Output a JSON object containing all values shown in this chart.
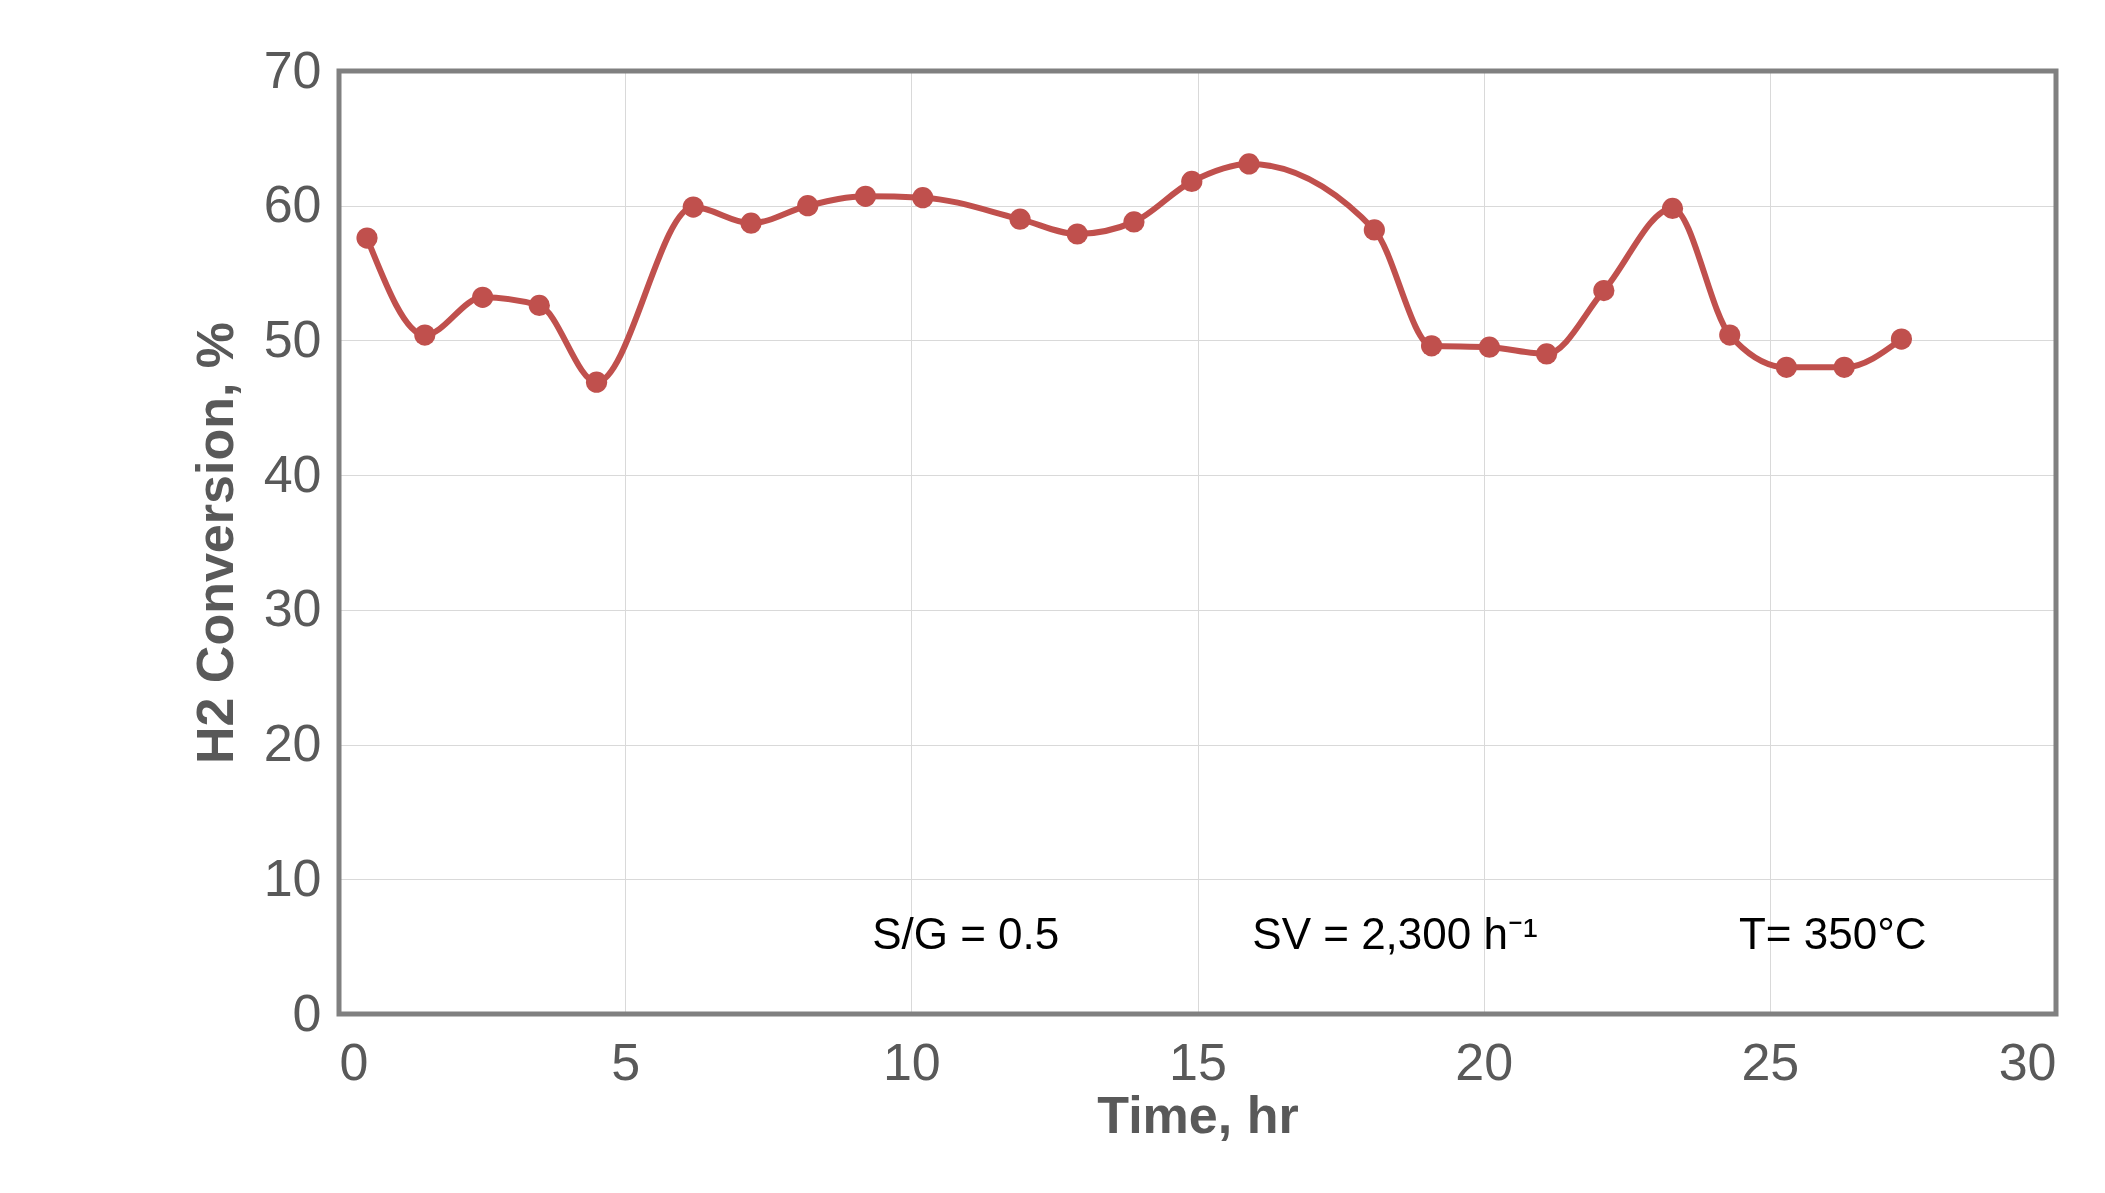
{
  "chart_data": {
    "type": "line",
    "xlabel": "Time, hr",
    "ylabel": "H2 Conversion, %",
    "x": [
      0.49,
      1.5,
      2.51,
      3.5,
      4.5,
      6.19,
      7.2,
      8.19,
      9.2,
      10.2,
      11.9,
      12.9,
      13.89,
      14.9,
      15.9,
      18.09,
      19.09,
      20.1,
      21.1,
      22.1,
      23.3,
      24.3,
      25.29,
      26.3,
      27.3
    ],
    "series": [
      {
        "color": "#c0504d",
        "values": [
          57.6,
          50.4,
          53.2,
          52.6,
          46.9,
          59.9,
          58.7,
          60.0,
          60.7,
          60.6,
          59.0,
          57.9,
          58.8,
          61.8,
          63.1,
          58.2,
          49.6,
          49.5,
          49.0,
          53.7,
          59.8,
          50.4,
          48.0,
          48.0,
          50.1
        ]
      }
    ],
    "xlim": [
      0,
      30
    ],
    "xticks": [
      0,
      5,
      10,
      15,
      20,
      25,
      30
    ],
    "ylim": [
      0,
      70
    ],
    "yticks": [
      0,
      10,
      20,
      30,
      40,
      50,
      60,
      70
    ],
    "grid": true,
    "marker": "circle",
    "line_style": "solid",
    "annotations": [
      "S/G = 0.5",
      "SV = 2,300 h⁻¹",
      "T= 350°C"
    ]
  }
}
